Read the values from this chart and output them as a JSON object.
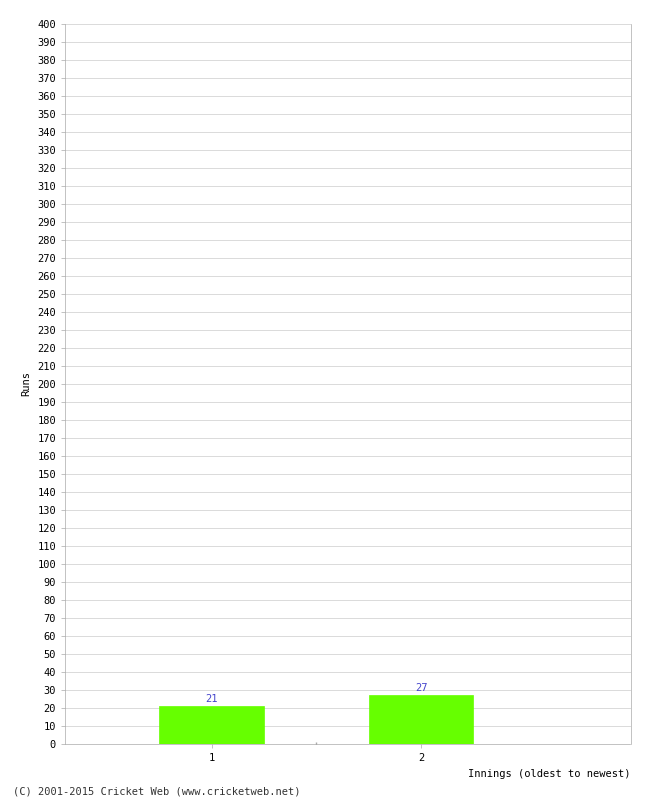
{
  "categories": [
    "1",
    "2"
  ],
  "values": [
    21,
    27
  ],
  "bar_color": "#66ff00",
  "bar_edge_color": "#66ff00",
  "ylabel": "Runs",
  "xlabel": "Innings (oldest to newest)",
  "ylim": [
    0,
    400
  ],
  "ytick_step": 10,
  "background_color": "#ffffff",
  "grid_color": "#cccccc",
  "value_label_color": "#4444cc",
  "value_label_fontsize": 7.5,
  "axis_label_fontsize": 7.5,
  "tick_label_fontsize": 7.5,
  "footer": "(C) 2001-2015 Cricket Web (www.cricketweb.net)",
  "footer_fontsize": 7.5,
  "bar_positions": [
    1,
    2
  ],
  "bar_width": 0.5,
  "xlim": [
    0.3,
    3.0
  ]
}
